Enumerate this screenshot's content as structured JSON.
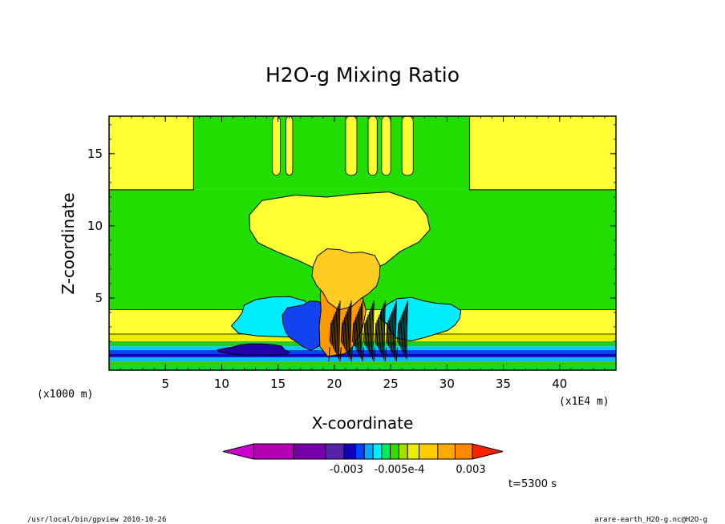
{
  "chart_data": {
    "type": "heatmap",
    "title": "H2O-g Mixing Ratio",
    "xlabel": "X-coordinate",
    "ylabel": "Z-coordinate",
    "x_unit": "(x1000 m)",
    "x_tick_scale": "(x1E4 m)",
    "xlim": [
      0,
      45
    ],
    "ylim": [
      0,
      17.6
    ],
    "x_ticks": [
      5,
      10,
      15,
      20,
      25,
      30,
      35,
      40
    ],
    "y_ticks": [
      5,
      10,
      15
    ],
    "colorbar": {
      "colors": [
        "#cc00cc",
        "#b400b4",
        "#7700aa",
        "#5522aa",
        "#1100bb",
        "#0044ff",
        "#00aaff",
        "#00eeff",
        "#00ee55",
        "#33dd00",
        "#aadd00",
        "#eeee00",
        "#ffcc00",
        "#ffaa00",
        "#ff8800",
        "#ff2200"
      ],
      "labels": [
        "-0.003",
        "-0.005e-4",
        "0.003"
      ]
    },
    "bands": [
      {
        "z": [
          0.0,
          0.3
        ],
        "color": "#00dd33"
      },
      {
        "z": [
          0.3,
          0.6
        ],
        "color": "#33cc00"
      },
      {
        "z": [
          0.6,
          0.9
        ],
        "color": "#00bbff"
      },
      {
        "z": [
          0.9,
          1.15
        ],
        "color": "#1100bb"
      },
      {
        "z": [
          1.15,
          1.4
        ],
        "color": "#0044ff"
      },
      {
        "z": [
          1.4,
          1.65
        ],
        "color": "#00ccff"
      },
      {
        "z": [
          1.65,
          2.0
        ],
        "color": "#22cc22"
      },
      {
        "z": [
          2.0,
          2.5
        ],
        "color": "#eeee00"
      },
      {
        "z": [
          2.5,
          3.0
        ],
        "color": "#ffff33"
      },
      {
        "z": [
          3.0,
          4.2
        ],
        "color": "#ffff33"
      },
      {
        "z": [
          4.2,
          12.5
        ],
        "color": "#22dd00"
      },
      {
        "z": [
          12.5,
          17.6
        ],
        "color": "#22dd00"
      }
    ],
    "features": [
      {
        "kind": "yellow",
        "x": [
          0,
          7.5
        ],
        "z": [
          12.5,
          17.6
        ]
      },
      {
        "kind": "yellow",
        "x": [
          32,
          45
        ],
        "z": [
          12.5,
          17.6
        ]
      },
      {
        "kind": "yellow",
        "x": [
          12.5,
          28.5
        ],
        "z": [
          7,
          12.5
        ]
      },
      {
        "kind": "yellow-thin",
        "x": [
          0,
          45
        ],
        "z": [
          2.5,
          4.2
        ]
      },
      {
        "kind": "cyan",
        "x": [
          11,
          19.5
        ],
        "z": [
          2.2,
          5
        ]
      },
      {
        "kind": "cyan",
        "x": [
          24,
          31
        ],
        "z": [
          2.2,
          5
        ]
      },
      {
        "kind": "blue",
        "x": [
          15.5,
          19.5
        ],
        "z": [
          1.6,
          4.8
        ]
      },
      {
        "kind": "darkblue",
        "x": [
          10,
          16
        ],
        "z": [
          1.0,
          1.8
        ]
      },
      {
        "kind": "orange",
        "x": [
          18.5,
          22.5
        ],
        "z": [
          0.8,
          7.5
        ]
      },
      {
        "kind": "lightorange",
        "x": [
          18,
          24
        ],
        "z": [
          4.5,
          8.5
        ]
      },
      {
        "kind": "turbulent",
        "x": [
          19.5,
          26.5
        ],
        "z": [
          0.6,
          5.5
        ]
      }
    ]
  },
  "time_label": "t=5300 s",
  "footer_left": "/usr/local/bin/gpview  2010-10-26",
  "footer_right": "arare-earth_H2O-g.nc@H2O-g"
}
